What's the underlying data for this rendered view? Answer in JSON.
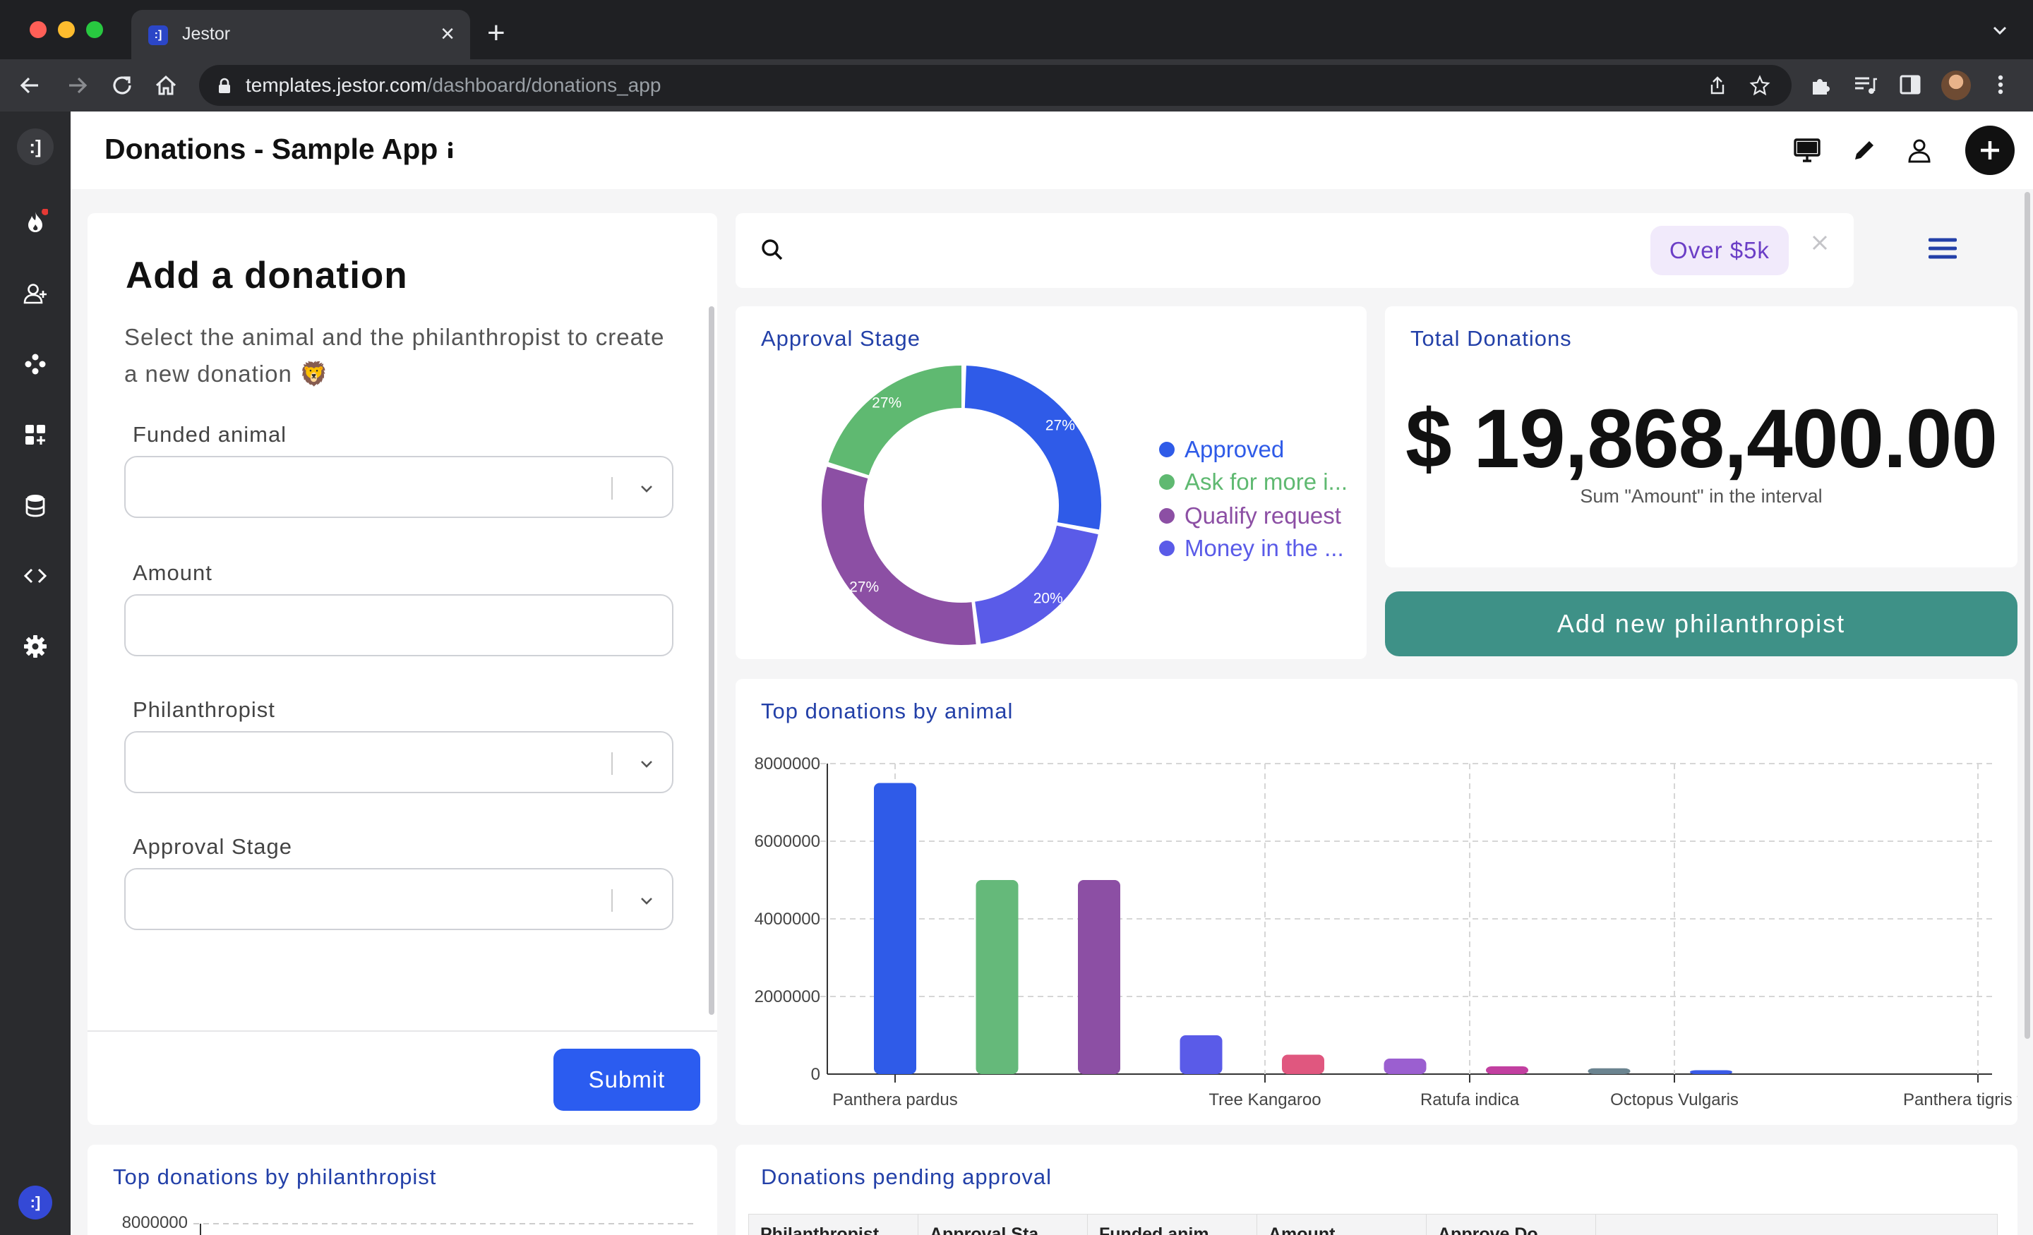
{
  "browser": {
    "tab_title": "Jestor",
    "tab_favicon": ":]",
    "url_host": "templates.jestor.com",
    "url_path": "/dashboard/donations_app"
  },
  "sidebar": {
    "logo": ":]",
    "bottom_logo": ":]",
    "items": [
      "fire-icon",
      "add-user-icon",
      "workflow-icon",
      "apps-icon",
      "database-icon",
      "code-icon",
      "gear-icon"
    ]
  },
  "header": {
    "title": "Donations - Sample App"
  },
  "form": {
    "title": "Add a donation",
    "description": "Select the animal and the philanthropist to create a new donation 🦁",
    "fields": [
      {
        "label": "Funded animal",
        "type": "select"
      },
      {
        "label": "Amount",
        "type": "text"
      },
      {
        "label": "Philanthropist",
        "type": "select"
      },
      {
        "label": "Approval Stage",
        "type": "select"
      }
    ],
    "submit_label": "Submit"
  },
  "search": {
    "filter_chip": "Over $5k"
  },
  "approval_stage": {
    "title": "Approval Stage",
    "legend": [
      {
        "label": "Approved",
        "color": "#2f5be8"
      },
      {
        "label": "Ask for more i...",
        "color": "#5fb971"
      },
      {
        "label": "Qualify request",
        "color": "#8c4fa4"
      },
      {
        "label": "Money in the ...",
        "color": "#5a5be8"
      }
    ],
    "slices": [
      "27%",
      "20%",
      "27%",
      "27%"
    ]
  },
  "total_donations": {
    "title": "Total Donations",
    "value": "$ 19,868,400.00",
    "subtitle": "Sum \"Amount\" in the interval"
  },
  "add_philanthropist_label": "Add new philanthropist",
  "chart_data": [
    {
      "type": "bar",
      "title": "Top donations by animal",
      "ylim": [
        0,
        8000000
      ],
      "yticks": [
        "8000000",
        "6000000",
        "4000000",
        "2000000",
        "0"
      ],
      "tick_labels": [
        "Panthera pardus",
        "Tree Kangaroo",
        "Ratufa indica",
        "Octopus Vulgaris",
        "Panthera tigris tigris"
      ],
      "values": [
        7500000,
        5000000,
        5000000,
        1000000,
        500000,
        400000,
        200000,
        150000,
        100000,
        0,
        0
      ],
      "colors": [
        "#2f5be8",
        "#65b97a",
        "#8c4fa4",
        "#5a5be8",
        "#e0577f",
        "#9b5fd0",
        "#c23fa0",
        "#6b8490",
        "#3a5be8",
        "#cccccc",
        "#cccccc"
      ],
      "grid": true
    },
    {
      "type": "bar",
      "title": "Top donations by philanthropist",
      "ylim": [
        0,
        8000000
      ],
      "yticks": [
        "8000000"
      ]
    }
  ],
  "pending": {
    "title": "Donations pending approval",
    "columns": [
      "Philanthropist",
      "Approval Sta",
      "Funded anim",
      "Amount",
      "Approve Do"
    ]
  }
}
